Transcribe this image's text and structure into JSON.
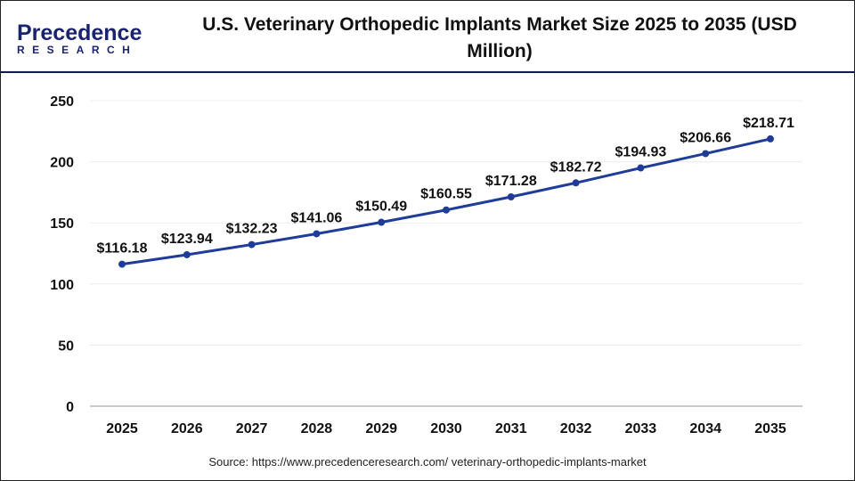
{
  "header": {
    "logo_top": "Precedence",
    "logo_bottom": "RESEARCH",
    "title": "U.S. Veterinary Orthopedic Implants Market Size 2025 to 2035 (USD Million)"
  },
  "source": "Source: https://www.precedenceresearch.com/ veterinary-orthopedic-implants-market",
  "chart_data": {
    "type": "line",
    "title": "U.S. Veterinary Orthopedic Implants Market Size 2025 to 2035 (USD Million)",
    "categories": [
      "2025",
      "2026",
      "2027",
      "2028",
      "2029",
      "2030",
      "2031",
      "2032",
      "2033",
      "2034",
      "2035"
    ],
    "values": [
      116.18,
      123.94,
      132.23,
      141.06,
      150.49,
      160.55,
      171.28,
      182.72,
      194.93,
      206.66,
      218.71
    ],
    "data_labels": [
      "$116.18",
      "$123.94",
      "$132.23",
      "$141.06",
      "$150.49",
      "$160.55",
      "$171.28",
      "$182.72",
      "$194.93",
      "$206.66",
      "$218.71"
    ],
    "yticks": [
      "0",
      "50",
      "100",
      "150",
      "200",
      "250"
    ],
    "ylim": [
      0,
      250
    ],
    "grid": true,
    "line_color": "#1f3c99"
  }
}
